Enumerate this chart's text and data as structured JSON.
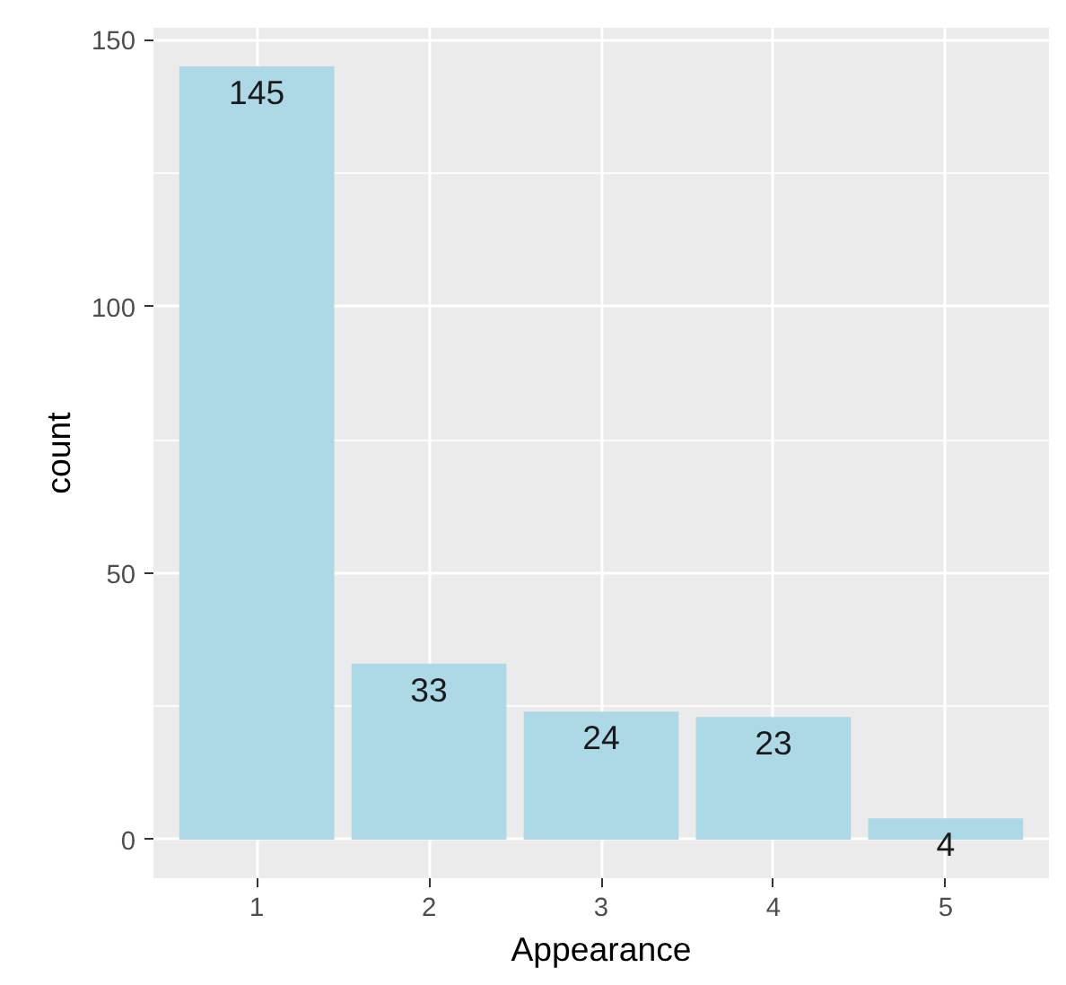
{
  "chart_data": {
    "type": "bar",
    "xlabel": "Appearance",
    "ylabel": "count",
    "categories": [
      "1",
      "2",
      "3",
      "4",
      "5"
    ],
    "values": [
      145,
      33,
      24,
      23,
      4
    ],
    "color": "#add8e6",
    "ylim": [
      -7.25,
      152.25
    ],
    "yticks": [
      0,
      50,
      100,
      150
    ],
    "grid": true,
    "data_labels": true
  }
}
